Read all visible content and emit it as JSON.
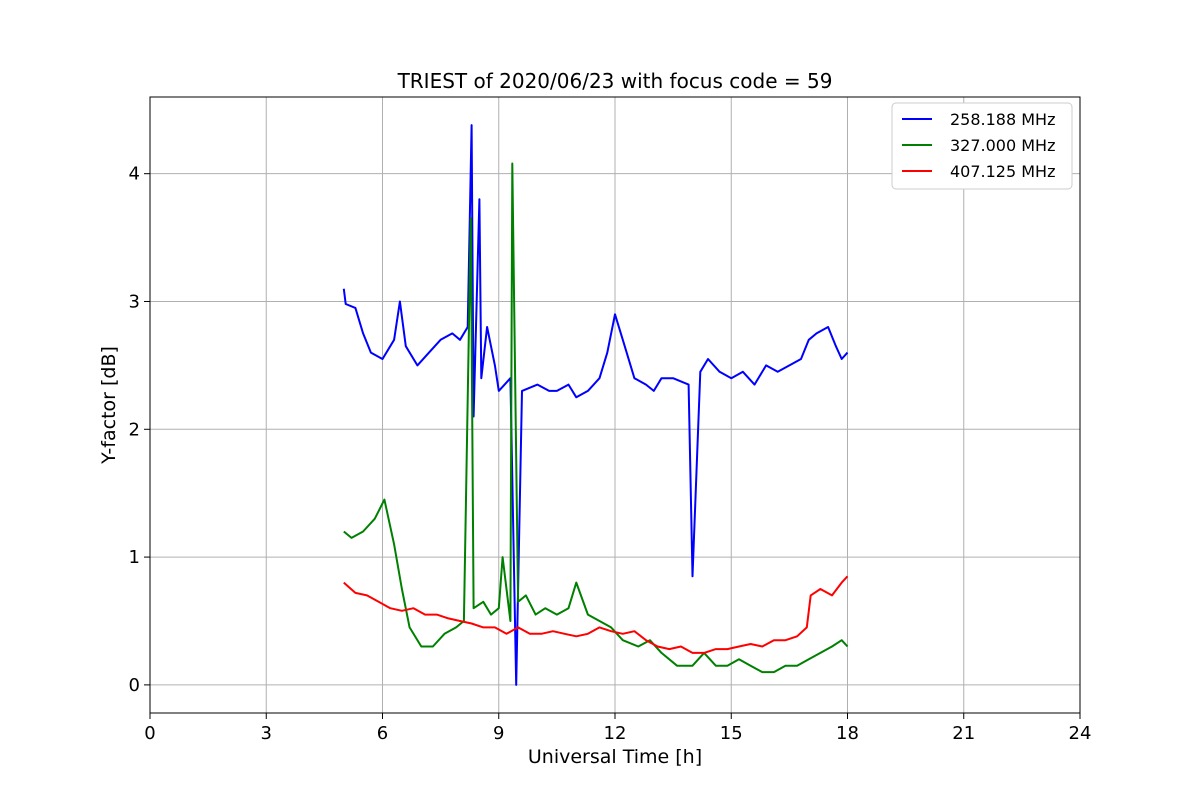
{
  "chart_data": {
    "type": "line",
    "title": "TRIEST of 2020/06/23 with focus code = 59",
    "xlabel": "Universal Time [h]",
    "ylabel": "Y-factor [dB]",
    "xlim": [
      0,
      24
    ],
    "ylim": [
      -0.22,
      4.6
    ],
    "xticks": [
      0,
      3,
      6,
      9,
      12,
      15,
      18,
      21,
      24
    ],
    "yticks": [
      0,
      1,
      2,
      3,
      4
    ],
    "grid": true,
    "legend_position": "top-right",
    "series": [
      {
        "name": "258.188 MHz",
        "color": "#0000ff",
        "x": [
          5.0,
          5.05,
          5.3,
          5.5,
          5.7,
          6.0,
          6.3,
          6.45,
          6.6,
          6.9,
          7.2,
          7.5,
          7.8,
          8.0,
          8.2,
          8.3,
          8.35,
          8.5,
          8.55,
          8.7,
          8.9,
          9.0,
          9.3,
          9.45,
          9.6,
          10.0,
          10.3,
          10.5,
          10.8,
          11.0,
          11.3,
          11.6,
          11.8,
          12.0,
          12.2,
          12.5,
          12.8,
          13.0,
          13.2,
          13.5,
          13.9,
          14.0,
          14.2,
          14.4,
          14.7,
          15.0,
          15.3,
          15.6,
          15.9,
          16.2,
          16.5,
          16.8,
          17.0,
          17.2,
          17.5,
          17.7,
          17.85,
          18.0
        ],
        "y": [
          3.1,
          2.98,
          2.95,
          2.75,
          2.6,
          2.55,
          2.7,
          3.0,
          2.65,
          2.5,
          2.6,
          2.7,
          2.75,
          2.7,
          2.8,
          4.38,
          2.1,
          3.8,
          2.4,
          2.8,
          2.5,
          2.3,
          2.4,
          0.0,
          2.3,
          2.35,
          2.3,
          2.3,
          2.35,
          2.25,
          2.3,
          2.4,
          2.6,
          2.9,
          2.7,
          2.4,
          2.35,
          2.3,
          2.4,
          2.4,
          2.35,
          0.85,
          2.45,
          2.55,
          2.45,
          2.4,
          2.45,
          2.35,
          2.5,
          2.45,
          2.5,
          2.55,
          2.7,
          2.75,
          2.8,
          2.65,
          2.55,
          2.6
        ]
      },
      {
        "name": "327.000 MHz",
        "color": "#008000",
        "x": [
          5.0,
          5.2,
          5.5,
          5.8,
          6.05,
          6.3,
          6.5,
          6.7,
          7.0,
          7.3,
          7.6,
          7.9,
          8.1,
          8.28,
          8.35,
          8.6,
          8.8,
          9.0,
          9.1,
          9.3,
          9.35,
          9.5,
          9.7,
          9.95,
          10.2,
          10.5,
          10.8,
          11.0,
          11.3,
          11.6,
          11.9,
          12.2,
          12.6,
          12.9,
          13.2,
          13.6,
          14.0,
          14.3,
          14.6,
          14.9,
          15.2,
          15.5,
          15.8,
          16.1,
          16.4,
          16.7,
          17.0,
          17.3,
          17.6,
          17.85,
          18.0
        ],
        "y": [
          1.2,
          1.15,
          1.2,
          1.3,
          1.45,
          1.1,
          0.75,
          0.45,
          0.3,
          0.3,
          0.4,
          0.45,
          0.5,
          3.65,
          0.6,
          0.65,
          0.55,
          0.6,
          1.0,
          0.5,
          4.08,
          0.65,
          0.7,
          0.55,
          0.6,
          0.55,
          0.6,
          0.8,
          0.55,
          0.5,
          0.45,
          0.35,
          0.3,
          0.35,
          0.25,
          0.15,
          0.15,
          0.25,
          0.15,
          0.15,
          0.2,
          0.15,
          0.1,
          0.1,
          0.15,
          0.15,
          0.2,
          0.25,
          0.3,
          0.35,
          0.3
        ]
      },
      {
        "name": "407.125 MHz",
        "color": "#ff0000",
        "x": [
          5.0,
          5.3,
          5.6,
          5.9,
          6.2,
          6.5,
          6.8,
          7.1,
          7.4,
          7.7,
          8.0,
          8.3,
          8.6,
          8.9,
          9.2,
          9.5,
          9.8,
          10.1,
          10.4,
          10.7,
          11.0,
          11.3,
          11.6,
          11.9,
          12.2,
          12.5,
          12.8,
          13.1,
          13.4,
          13.7,
          14.0,
          14.3,
          14.6,
          14.9,
          15.2,
          15.5,
          15.8,
          16.1,
          16.4,
          16.7,
          16.95,
          17.05,
          17.3,
          17.6,
          17.85,
          18.0
        ],
        "y": [
          0.8,
          0.72,
          0.7,
          0.65,
          0.6,
          0.58,
          0.6,
          0.55,
          0.55,
          0.52,
          0.5,
          0.48,
          0.45,
          0.45,
          0.4,
          0.45,
          0.4,
          0.4,
          0.42,
          0.4,
          0.38,
          0.4,
          0.45,
          0.42,
          0.4,
          0.42,
          0.35,
          0.3,
          0.28,
          0.3,
          0.25,
          0.25,
          0.28,
          0.28,
          0.3,
          0.32,
          0.3,
          0.35,
          0.35,
          0.38,
          0.45,
          0.7,
          0.75,
          0.7,
          0.8,
          0.85
        ]
      }
    ]
  }
}
